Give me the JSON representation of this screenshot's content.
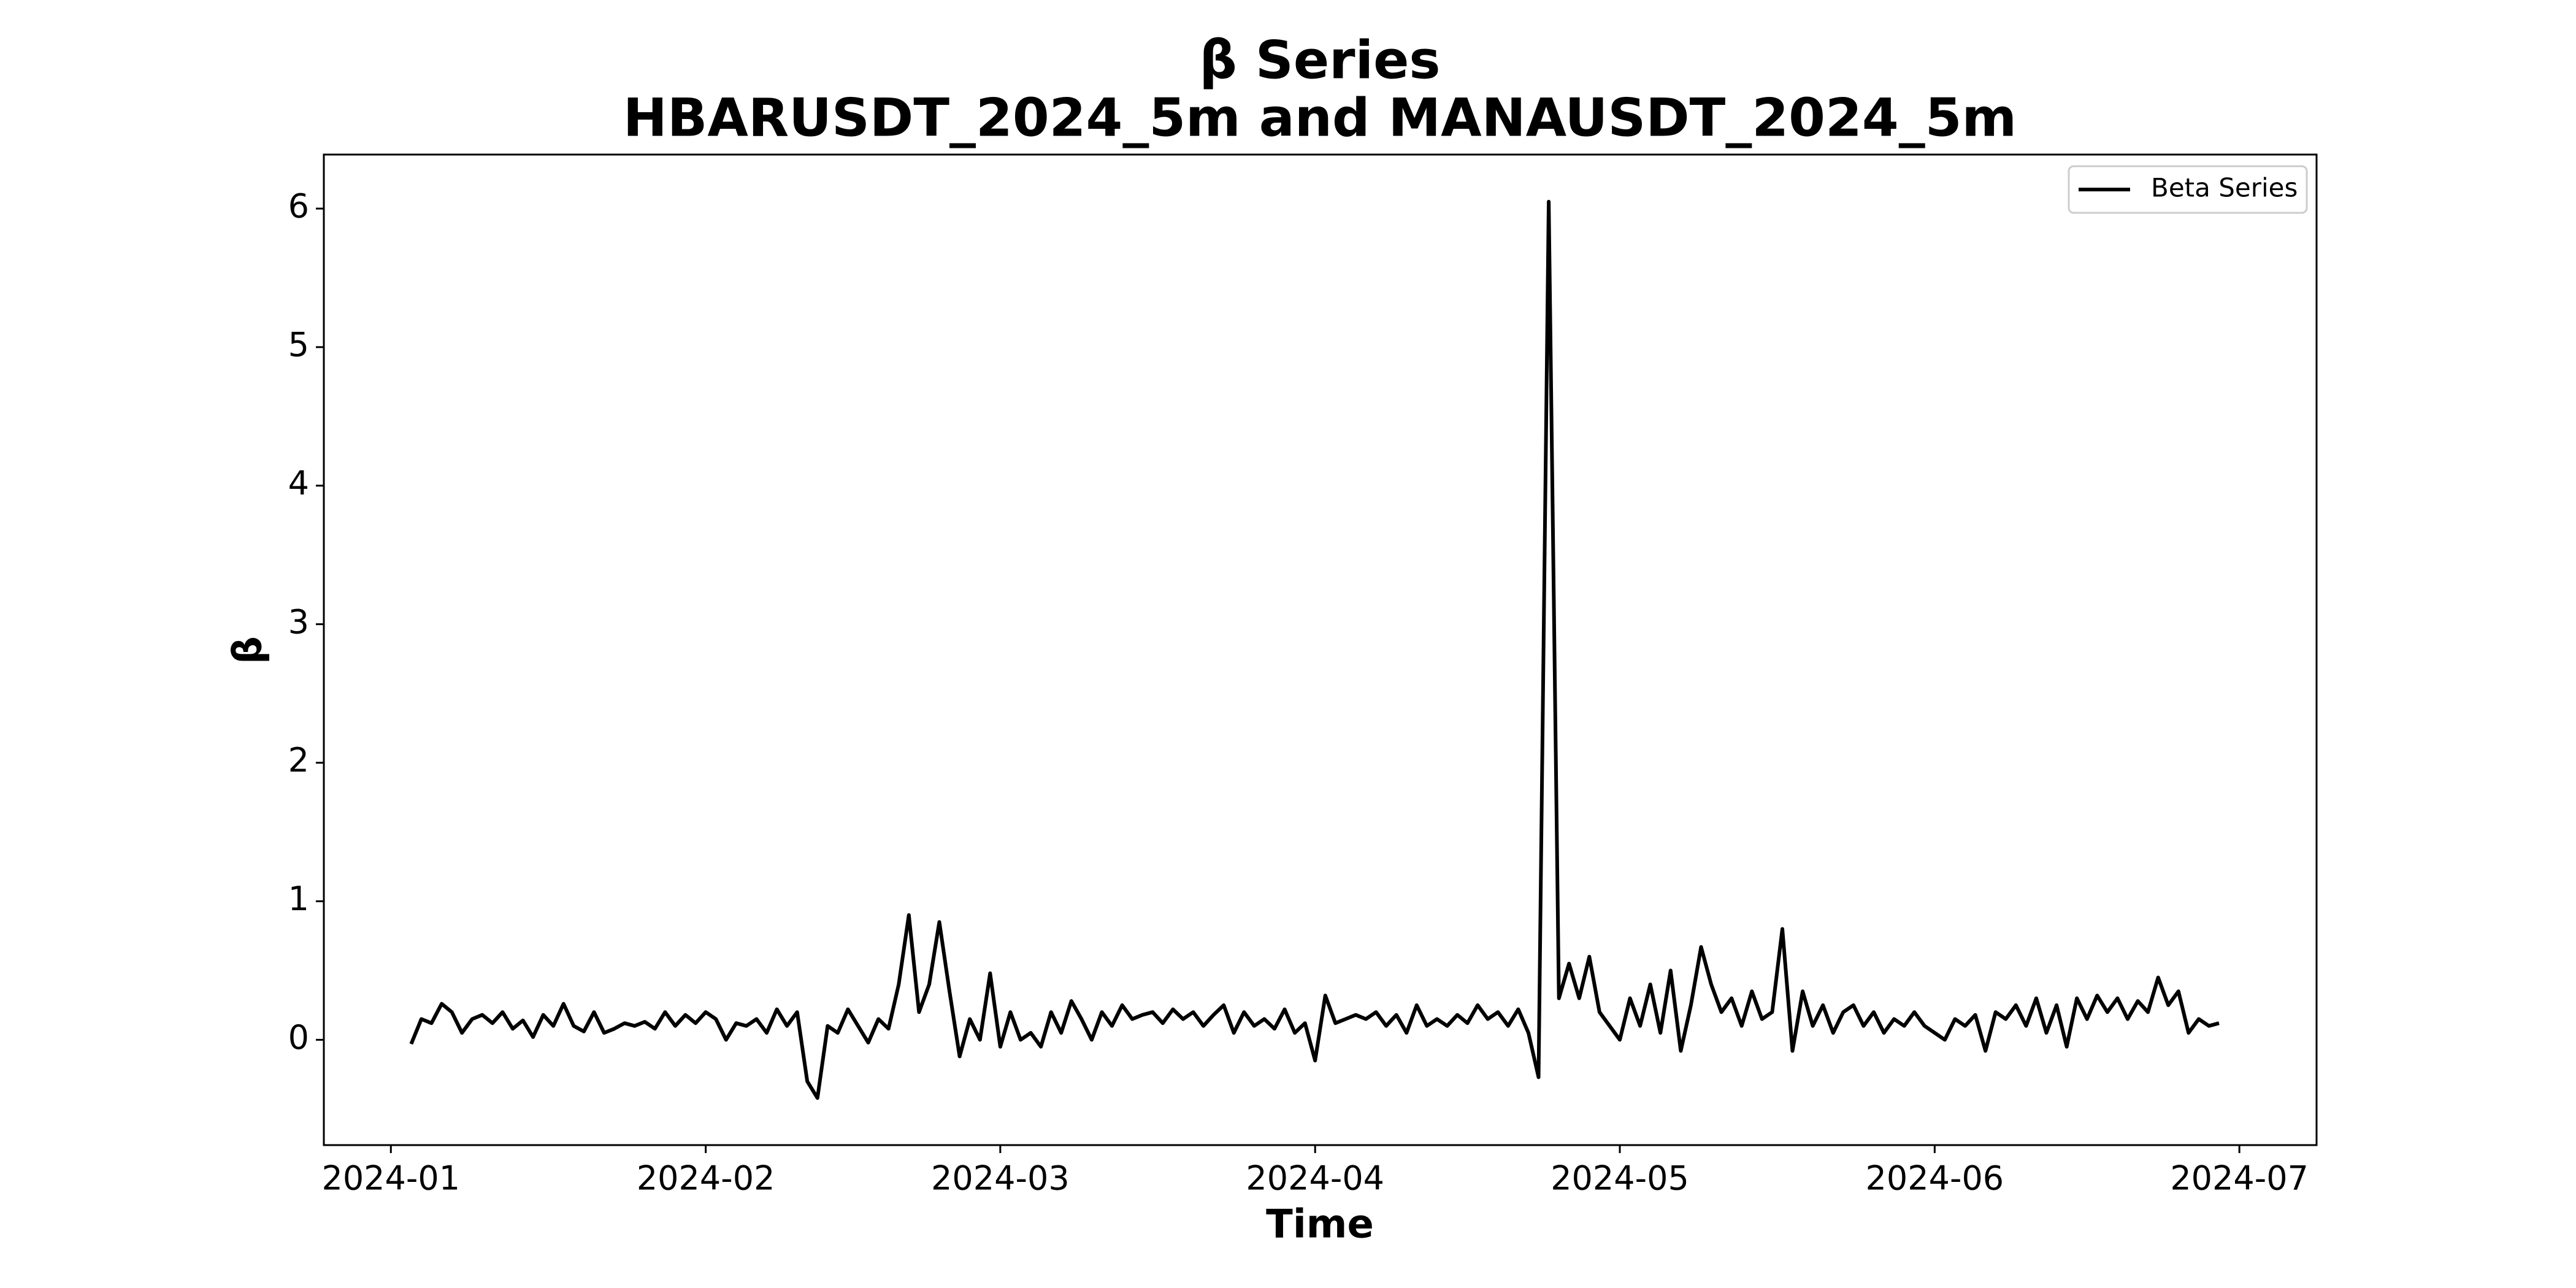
{
  "chart_data": {
    "type": "line",
    "title": "β Series",
    "subtitle": "HBARUSDT_2024_5m and MANAUSDT_2024_5m",
    "x_label": "Time",
    "y_label": "β",
    "legend": "upper right",
    "xlim": [
      -6.6,
      189.6
    ],
    "xticks": [
      {
        "value": 0,
        "label": "2024-01"
      },
      {
        "value": 31,
        "label": "2024-02"
      },
      {
        "value": 60,
        "label": "2024-03"
      },
      {
        "value": 91,
        "label": "2024-04"
      },
      {
        "value": 121,
        "label": "2024-05"
      },
      {
        "value": 152,
        "label": "2024-06"
      },
      {
        "value": 182,
        "label": "2024-07"
      }
    ],
    "ylim": [
      -0.76,
      6.39
    ],
    "yticks": [
      0,
      1,
      2,
      3,
      4,
      5,
      6
    ],
    "x": [
      2,
      3,
      4,
      5,
      6,
      7,
      8,
      9,
      10,
      11,
      12,
      13,
      14,
      15,
      16,
      17,
      18,
      19,
      20,
      21,
      22,
      23,
      24,
      25,
      26,
      27,
      28,
      29,
      30,
      31,
      32,
      33,
      34,
      35,
      36,
      37,
      38,
      39,
      40,
      41,
      42,
      43,
      44,
      45,
      46,
      47,
      48,
      49,
      50,
      51,
      52,
      53,
      54,
      55,
      56,
      57,
      58,
      59,
      60,
      61,
      62,
      63,
      64,
      65,
      66,
      67,
      68,
      69,
      70,
      71,
      72,
      73,
      74,
      75,
      76,
      77,
      78,
      79,
      80,
      81,
      82,
      83,
      84,
      85,
      86,
      87,
      88,
      89,
      90,
      91,
      92,
      93,
      94,
      95,
      96,
      97,
      98,
      99,
      100,
      101,
      102,
      103,
      104,
      105,
      106,
      107,
      108,
      109,
      110,
      111,
      112,
      113,
      114,
      115,
      116,
      117,
      118,
      119,
      120,
      121,
      122,
      123,
      124,
      125,
      126,
      127,
      128,
      129,
      130,
      131,
      132,
      133,
      134,
      135,
      136,
      137,
      138,
      139,
      140,
      141,
      142,
      143,
      144,
      145,
      146,
      147,
      148,
      149,
      150,
      151,
      152,
      153,
      154,
      155,
      156,
      157,
      158,
      159,
      160,
      161,
      162,
      163,
      164,
      165,
      166,
      167,
      168,
      169,
      170,
      171,
      172,
      173,
      174,
      175,
      176,
      177,
      178,
      179,
      180
    ],
    "series": [
      {
        "name": "Beta Series",
        "color": "#000000",
        "values": [
          -0.03,
          0.15,
          0.12,
          0.26,
          0.2,
          0.05,
          0.15,
          0.18,
          0.12,
          0.2,
          0.08,
          0.14,
          0.02,
          0.18,
          0.1,
          0.26,
          0.1,
          0.06,
          0.2,
          0.05,
          0.08,
          0.12,
          0.1,
          0.13,
          0.08,
          0.2,
          0.1,
          0.18,
          0.12,
          0.2,
          0.15,
          0.0,
          0.12,
          0.1,
          0.15,
          0.05,
          0.22,
          0.1,
          0.2,
          -0.3,
          -0.42,
          0.1,
          0.05,
          0.22,
          0.1,
          -0.02,
          0.15,
          0.08,
          0.4,
          0.9,
          0.2,
          0.4,
          0.85,
          0.35,
          -0.12,
          0.15,
          0.0,
          0.48,
          -0.05,
          0.2,
          0.0,
          0.05,
          -0.05,
          0.2,
          0.05,
          0.28,
          0.15,
          0.0,
          0.2,
          0.1,
          0.25,
          0.15,
          0.18,
          0.2,
          0.12,
          0.22,
          0.15,
          0.2,
          0.1,
          0.18,
          0.25,
          0.05,
          0.2,
          0.1,
          0.15,
          0.08,
          0.22,
          0.05,
          0.12,
          -0.15,
          0.32,
          0.12,
          0.15,
          0.18,
          0.15,
          0.2,
          0.1,
          0.18,
          0.05,
          0.25,
          0.1,
          0.15,
          0.1,
          0.18,
          0.12,
          0.25,
          0.15,
          0.2,
          0.1,
          0.22,
          0.05,
          -0.27,
          6.05,
          0.3,
          0.55,
          0.3,
          0.6,
          0.2,
          0.1,
          0.0,
          0.3,
          0.1,
          0.4,
          0.05,
          0.5,
          -0.08,
          0.25,
          0.67,
          0.4,
          0.2,
          0.3,
          0.1,
          0.35,
          0.15,
          0.2,
          0.8,
          -0.08,
          0.35,
          0.1,
          0.25,
          0.05,
          0.2,
          0.25,
          0.1,
          0.2,
          0.05,
          0.15,
          0.1,
          0.2,
          0.1,
          0.05,
          0.0,
          0.15,
          0.1,
          0.18,
          -0.08,
          0.2,
          0.15,
          0.25,
          0.1,
          0.3,
          0.05,
          0.25,
          -0.05,
          0.3,
          0.15,
          0.32,
          0.2,
          0.3,
          0.15,
          0.28,
          0.2,
          0.45,
          0.25,
          0.35,
          0.05,
          0.15,
          0.1,
          0.12
        ]
      }
    ]
  }
}
